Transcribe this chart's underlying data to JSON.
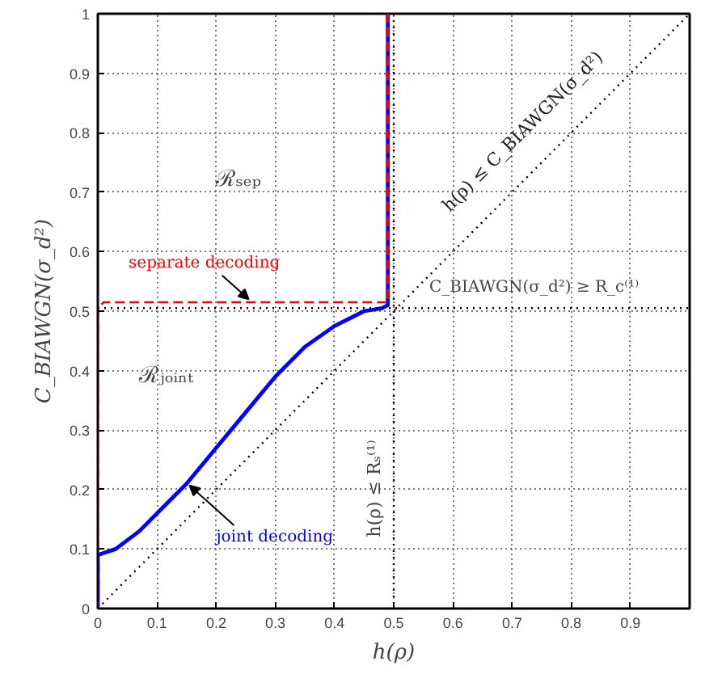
{
  "chart_data": {
    "type": "line",
    "xlabel": "h(ρ)",
    "ylabel": "C_BIAWGN(σ_d²)",
    "xlim": [
      0,
      1
    ],
    "ylim": [
      0,
      1
    ],
    "xticks": [
      0,
      0.1,
      0.2,
      0.3,
      0.4,
      0.5,
      0.6,
      0.7,
      0.8,
      0.9
    ],
    "yticks": [
      0,
      0.1,
      0.2,
      0.3,
      0.4,
      0.5,
      0.6,
      0.7,
      0.8,
      0.9,
      1
    ],
    "grid": true,
    "legend": false,
    "series": [
      {
        "name": "joint decoding",
        "color": "#0000ff",
        "line_style": "solid",
        "x": [
          0,
          0,
          0.03,
          0.07,
          0.1,
          0.15,
          0.2,
          0.25,
          0.3,
          0.35,
          0.4,
          0.45,
          0.48,
          0.49,
          0.49
        ],
        "values": [
          0,
          0.09,
          0.1,
          0.13,
          0.16,
          0.21,
          0.27,
          0.33,
          0.39,
          0.44,
          0.475,
          0.5,
          0.505,
          0.51,
          1
        ]
      },
      {
        "name": "separate decoding",
        "color": "#ff0000",
        "line_style": "dashed",
        "x": [
          0,
          0,
          0.01,
          0.49,
          0.49
        ],
        "values": [
          0,
          0.505,
          0.515,
          0.515,
          1
        ]
      },
      {
        "name": "h(ρ) ≤ C_BIAWGN(σ_d²)",
        "color": "#000000",
        "line_style": "dotted",
        "x": [
          0,
          1
        ],
        "values": [
          0,
          1
        ]
      }
    ],
    "ref_lines": [
      {
        "axis": "y",
        "value": 0.505,
        "label": "C_BIAWGN(σ_d²) ≥ R_c⁽¹⁾",
        "color": "#000000",
        "line_style": "dotted"
      },
      {
        "axis": "x",
        "value": 0.5,
        "label": "h(ρ) ≤ Rₛ⁽¹⁾",
        "color": "#000000",
        "line_style": "dotted"
      }
    ],
    "annotations": [
      "ℛₛₑₚ",
      "ℛⱼₒᵢₙₜ"
    ]
  }
}
